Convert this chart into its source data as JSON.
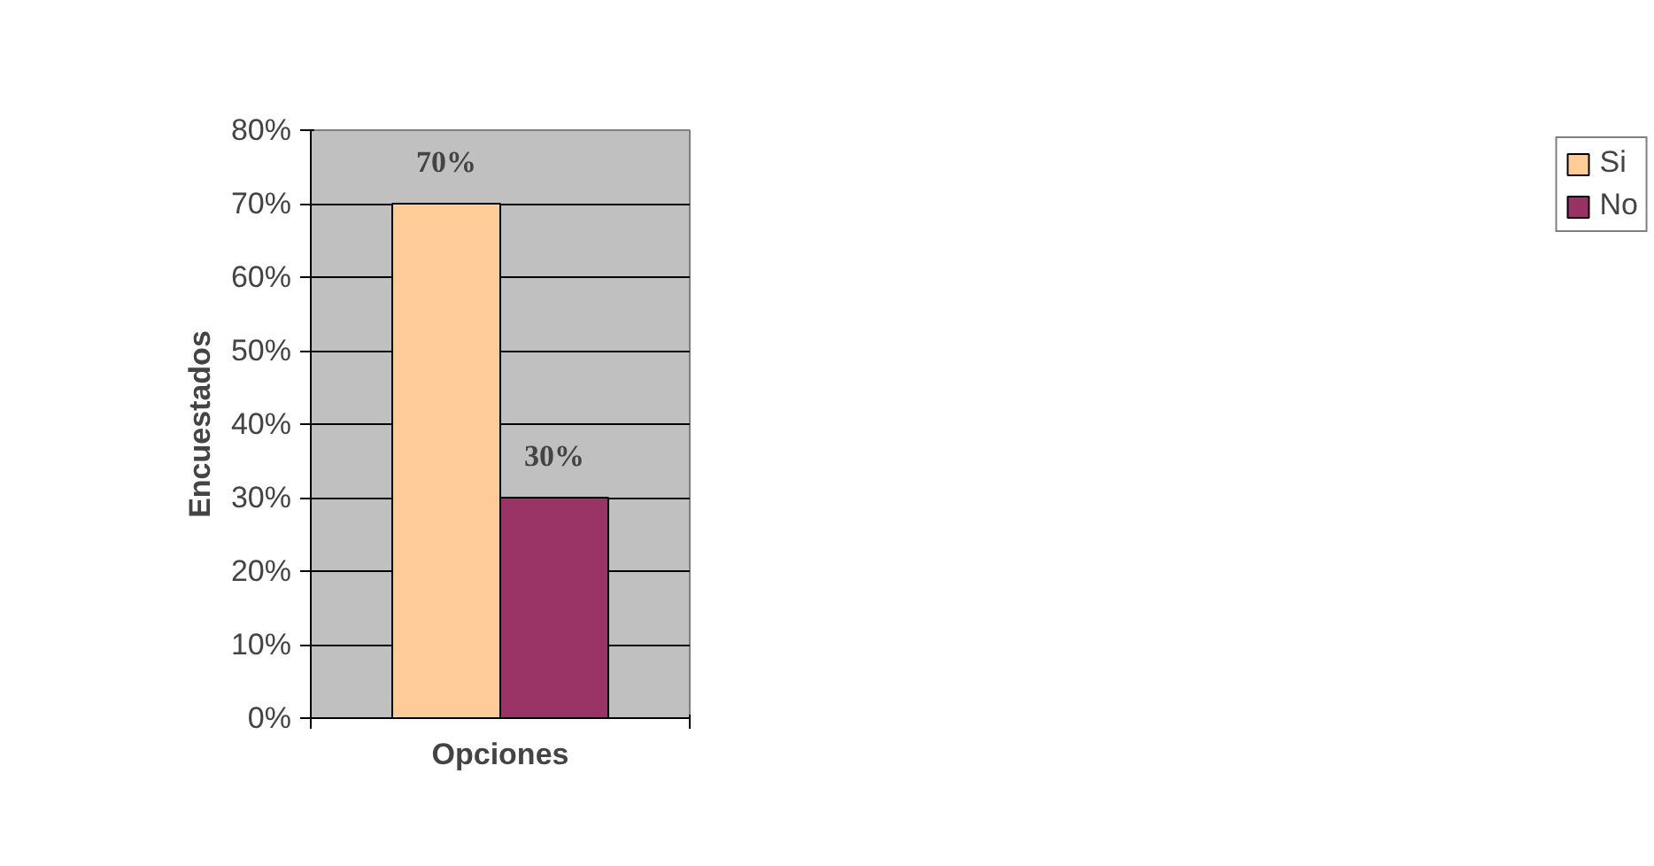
{
  "chart_data": {
    "type": "bar",
    "categories": [
      null
    ],
    "series": [
      {
        "name": "Si",
        "color": "#ffcc99",
        "values": [
          70
        ],
        "value_labels": [
          "70%"
        ]
      },
      {
        "name": "No",
        "color": "#993366",
        "values": [
          30
        ],
        "value_labels": [
          "30%"
        ]
      }
    ],
    "xlabel": "Opciones",
    "ylabel": "Encuestados",
    "ylim": [
      0,
      80
    ],
    "yticks": [
      {
        "value": 0,
        "label": "0%"
      },
      {
        "value": 10,
        "label": "10%"
      },
      {
        "value": 20,
        "label": "20%"
      },
      {
        "value": 30,
        "label": "30%"
      },
      {
        "value": 40,
        "label": "40%"
      },
      {
        "value": 50,
        "label": "50%"
      },
      {
        "value": 60,
        "label": "60%"
      },
      {
        "value": 70,
        "label": "70%"
      },
      {
        "value": 80,
        "label": "80%"
      }
    ],
    "grid": "y",
    "legend": "right"
  }
}
